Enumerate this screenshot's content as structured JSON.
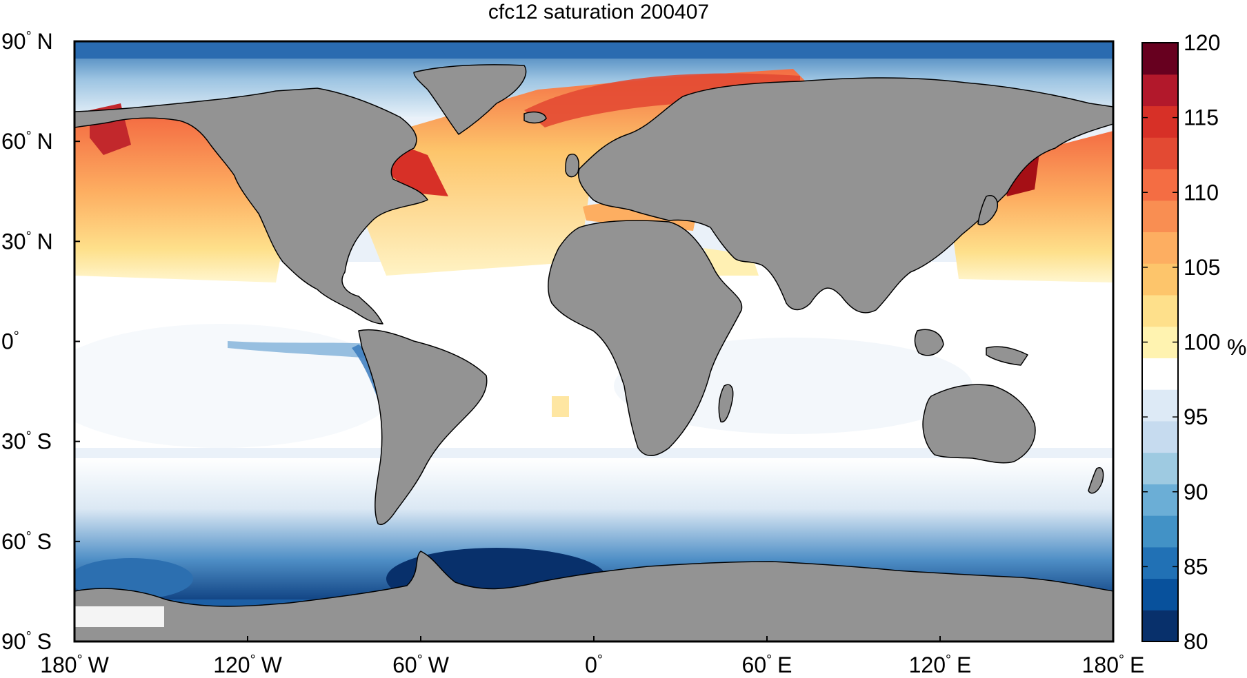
{
  "title": "cfc12 saturation 200407",
  "lat_ticks": [
    {
      "lat": 90,
      "deg": "90",
      "hemi": "N"
    },
    {
      "lat": 60,
      "deg": "60",
      "hemi": "N"
    },
    {
      "lat": 30,
      "deg": "30",
      "hemi": "N"
    },
    {
      "lat": 0,
      "deg": "0",
      "hemi": ""
    },
    {
      "lat": -30,
      "deg": "30",
      "hemi": "S"
    },
    {
      "lat": -60,
      "deg": "60",
      "hemi": "S"
    },
    {
      "lat": -90,
      "deg": "90",
      "hemi": "S"
    }
  ],
  "lon_ticks": [
    {
      "lon": -180,
      "deg": "180",
      "hemi": "W"
    },
    {
      "lon": -120,
      "deg": "120",
      "hemi": "W"
    },
    {
      "lon": -60,
      "deg": "60",
      "hemi": "W"
    },
    {
      "lon": 0,
      "deg": "0",
      "hemi": ""
    },
    {
      "lon": 60,
      "deg": "60",
      "hemi": "E"
    },
    {
      "lon": 120,
      "deg": "120",
      "hemi": "E"
    },
    {
      "lon": 180,
      "deg": "180",
      "hemi": "E"
    }
  ],
  "colorbar": {
    "min": 80,
    "max": 120,
    "unit": "%",
    "tick_values": [
      80,
      85,
      90,
      95,
      100,
      105,
      110,
      115,
      120
    ],
    "tick_labels": [
      "80",
      "85",
      "90",
      "95",
      "100",
      "105",
      "110",
      "115",
      "120"
    ],
    "colors_low_to_high": [
      "#08306b",
      "#08519c",
      "#2171b5",
      "#4292c6",
      "#6baed6",
      "#9ecae1",
      "#c6dbef",
      "#ddeaf6",
      "#ffffff",
      "#fff3b0",
      "#fee08b",
      "#fdc56b",
      "#fdae61",
      "#f98e52",
      "#f46d43",
      "#e34a33",
      "#d73027",
      "#b2182b",
      "#67001f"
    ]
  },
  "colors": {
    "land": "#939393",
    "coast": "#000000",
    "frame": "#000000"
  }
}
